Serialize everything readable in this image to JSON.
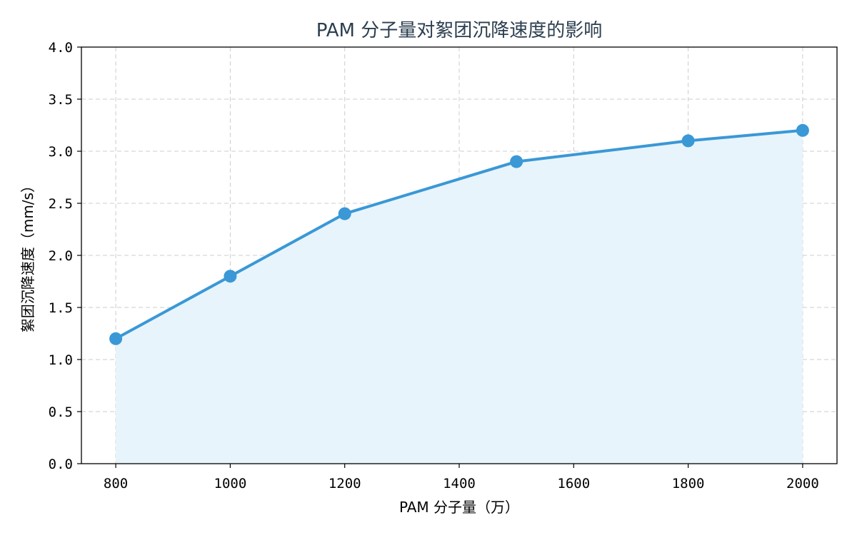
{
  "chart_data": {
    "type": "line",
    "title": "PAM 分子量对絮团沉降速度的影响",
    "xlabel": "PAM 分子量（万）",
    "ylabel": "絮团沉降速度（mm/s）",
    "x": [
      800,
      1000,
      1200,
      1500,
      1800,
      2000
    ],
    "series": [
      {
        "values": [
          1.2,
          1.8,
          2.4,
          2.9,
          3.1,
          3.2
        ]
      }
    ],
    "xlim": [
      740,
      2060
    ],
    "ylim": [
      0.0,
      4.0
    ],
    "x_ticks": [
      800,
      1000,
      1200,
      1400,
      1600,
      1800,
      2000
    ],
    "y_ticks": [
      "0.0",
      "0.5",
      "1.0",
      "1.5",
      "2.0",
      "2.5",
      "3.0",
      "3.5",
      "4.0"
    ],
    "grid": true,
    "area_fill": true,
    "colors": {
      "line": "#3a98d6",
      "fill": "#e8f4fb",
      "title": "#2c3e50"
    }
  }
}
